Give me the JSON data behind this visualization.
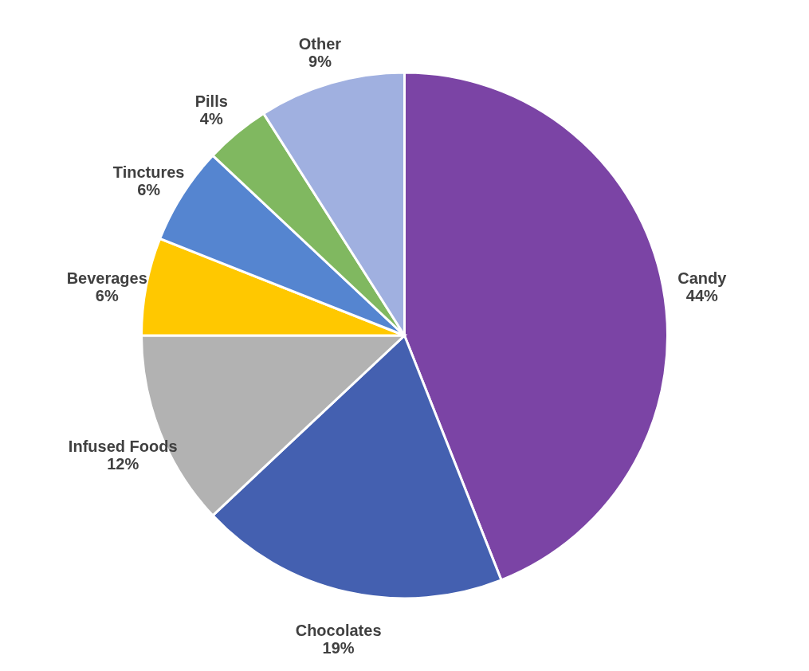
{
  "chart_data": {
    "type": "pie",
    "categories": [
      "Candy",
      "Chocolates",
      "Infused Foods",
      "Beverages",
      "Tinctures",
      "Pills",
      "Other"
    ],
    "values": [
      44,
      19,
      12,
      6,
      6,
      4,
      9
    ],
    "value_labels": [
      "44%",
      "19%",
      "12%",
      "6%",
      "6%",
      "4%",
      "9%"
    ],
    "colors": [
      "#7b44a5",
      "#4460b0",
      "#b2b2b2",
      "#ffc800",
      "#5585d0",
      "#80b860",
      "#a0b0e0"
    ],
    "legend": false
  }
}
